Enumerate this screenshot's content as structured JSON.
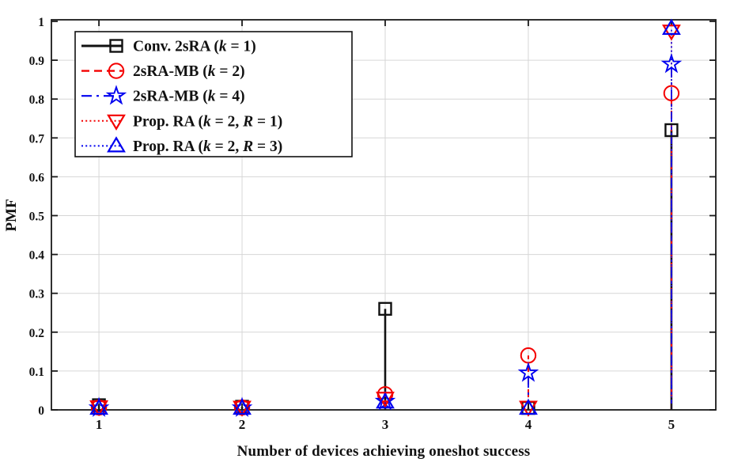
{
  "chart_data": {
    "type": "stem",
    "xlabel": "Number of devices achieving oneshot success",
    "ylabel": "PMF",
    "x": [
      1,
      2,
      3,
      4,
      5
    ],
    "xtick_labels": [
      "1",
      "2",
      "3",
      "4",
      "5"
    ],
    "yticks": [
      0,
      0.1,
      0.2,
      0.3,
      0.4,
      0.5,
      0.6,
      0.7,
      0.8,
      0.9,
      1
    ],
    "ytick_labels": [
      "0",
      "0.1",
      "0.2",
      "0.3",
      "0.4",
      "0.5",
      "0.6",
      "0.7",
      "0.8",
      "0.9",
      "1"
    ],
    "xlim": [
      0.668,
      5.31
    ],
    "ylim": [
      0,
      1
    ],
    "grid": true,
    "grid_color": "#d6d6d6",
    "axis_color": "#1a1a1a",
    "legend_position": "top-left",
    "series": [
      {
        "name": "Conv. 2sRA (k = 1)",
        "color": "#111111",
        "line_style": "solid",
        "marker": "square",
        "values": [
          0.012,
          0.008,
          0.26,
          0.005,
          0.72
        ]
      },
      {
        "name": "2sRA-MB (k = 2)",
        "color": "#f40000",
        "line_style": "dashed",
        "marker": "circle",
        "values": [
          0.006,
          0.006,
          0.04,
          0.14,
          0.815
        ]
      },
      {
        "name": "2sRA-MB (k = 4)",
        "color": "#0000f0",
        "line_style": "dashdot",
        "marker": "star",
        "values": [
          0.005,
          0.005,
          0.022,
          0.095,
          0.89
        ]
      },
      {
        "name": "Prop. RA (k = 2, R = 1)",
        "color": "#f40000",
        "line_style": "dotted",
        "marker": "triangle-down",
        "values": [
          0.008,
          0.007,
          0.03,
          0.007,
          0.975
        ]
      },
      {
        "name": "Prop. RA (k = 2, R = 3)",
        "color": "#0000f0",
        "line_style": "dotted",
        "marker": "triangle-up",
        "values": [
          0.004,
          0.004,
          0.02,
          0.004,
          0.982
        ]
      }
    ]
  }
}
